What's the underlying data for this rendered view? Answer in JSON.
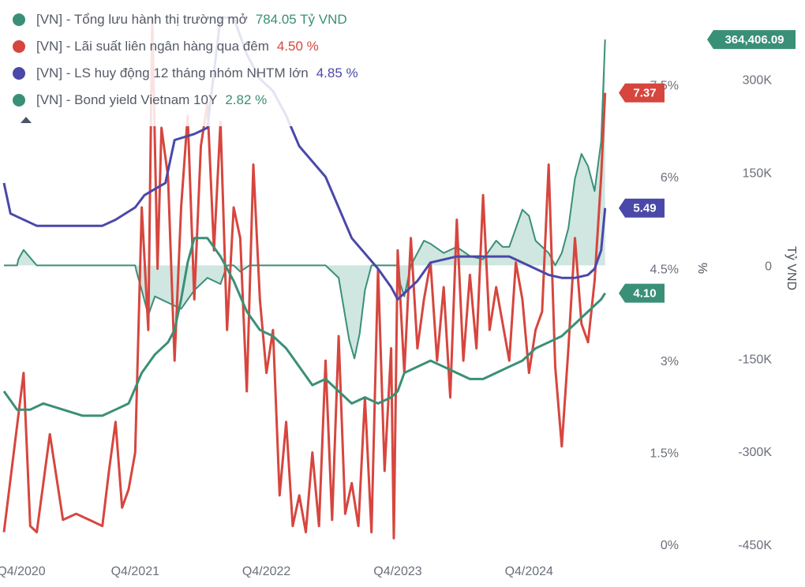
{
  "legend": {
    "items": [
      {
        "label": "[VN] - Tổng lưu hành thị trường mở",
        "value": "784.05 Tỷ VND",
        "color": "#3a8f77"
      },
      {
        "label": "[VN] - Lãi suất liên ngân hàng qua đêm",
        "value": "4.50 %",
        "color": "#d6463e"
      },
      {
        "label": "[VN] - LS huy động 12 tháng nhóm NHTM lớn",
        "value": "4.85 %",
        "color": "#4a48a8"
      },
      {
        "label": "[VN] - Bond yield Vietnam 10Y",
        "value": "2.82 %",
        "color": "#3a8f77"
      }
    ],
    "collapse_icon": "caret-up-icon"
  },
  "chart_data": {
    "type": "line",
    "x_ticks": [
      "Q4/2020",
      "Q4/2021",
      "Q4/2022",
      "Q4/2023",
      "Q4/2024"
    ],
    "x_tick_years": [
      2020.75,
      2021.75,
      2022.75,
      2023.75,
      2024.75
    ],
    "xlim": [
      2020.75,
      2025.5
    ],
    "y_left": {
      "title": "%",
      "ticks": [
        "0%",
        "1.5%",
        "3%",
        "4.5%",
        "6%",
        "7.5%"
      ],
      "tick_values": [
        0,
        1.5,
        3,
        4.5,
        6,
        7.5
      ],
      "ylim": [
        0,
        8.5
      ]
    },
    "y_right": {
      "title": "Tỷ VND",
      "ticks": [
        "-450K",
        "-300K",
        "-150K",
        "0",
        "150K",
        "300K"
      ],
      "tick_values": [
        -450000,
        -300000,
        -150000,
        0,
        150000,
        300000
      ],
      "ylim": [
        -450000,
        390000
      ]
    },
    "grid": false,
    "series": [
      {
        "name": "[VN] - Tổng lưu hành thị trường mở",
        "axis": "right",
        "color": "#3a8f77",
        "fill": "#bcdcd3",
        "x": [
          2020.75,
          2020.85,
          2020.86,
          2020.9,
          2021.0,
          2021.5,
          2021.75,
          2021.76,
          2021.8,
          2021.85,
          2021.9,
          2022.0,
          2022.1,
          2022.2,
          2022.3,
          2022.4,
          2022.45,
          2022.5,
          2022.55,
          2022.62,
          2022.64,
          2022.7,
          2022.75,
          2022.8,
          2022.9,
          2023.0,
          2023.1,
          2023.2,
          2023.3,
          2023.38,
          2023.42,
          2023.46,
          2023.5,
          2023.55,
          2023.65,
          2023.7,
          2023.75,
          2023.77,
          2023.8,
          2023.85,
          2023.9,
          2023.95,
          2024.0,
          2024.1,
          2024.2,
          2024.3,
          2024.4,
          2024.5,
          2024.55,
          2024.6,
          2024.65,
          2024.7,
          2024.75,
          2024.8,
          2024.85,
          2024.9,
          2024.95,
          2025.0,
          2025.05,
          2025.1,
          2025.15,
          2025.2,
          2025.25,
          2025.3,
          2025.33
        ],
        "y": [
          0,
          0,
          10000,
          25000,
          0,
          0,
          0,
          -10000,
          -40000,
          -80000,
          -50000,
          -60000,
          -70000,
          -40000,
          -20000,
          -30000,
          0,
          0,
          -10000,
          0,
          0,
          0,
          0,
          0,
          0,
          0,
          0,
          0,
          -20000,
          -120000,
          -150000,
          -110000,
          -40000,
          0,
          0,
          0,
          0,
          -30000,
          -50000,
          0,
          20000,
          40000,
          35000,
          20000,
          30000,
          15000,
          10000,
          40000,
          30000,
          30000,
          60000,
          90000,
          80000,
          40000,
          30000,
          20000,
          0,
          20000,
          60000,
          140000,
          180000,
          160000,
          120000,
          200000,
          364406.09
        ]
      },
      {
        "name": "[VN] - Lãi suất liên ngân hàng qua đêm",
        "axis": "left",
        "color": "#d6463e",
        "x": [
          2020.75,
          2020.9,
          2020.95,
          2021.0,
          2021.05,
          2021.1,
          2021.2,
          2021.3,
          2021.4,
          2021.5,
          2021.55,
          2021.6,
          2021.65,
          2021.7,
          2021.75,
          2021.8,
          2021.85,
          2021.88,
          2021.92,
          2021.95,
          2022.0,
          2022.05,
          2022.1,
          2022.15,
          2022.2,
          2022.25,
          2022.3,
          2022.35,
          2022.4,
          2022.45,
          2022.5,
          2022.55,
          2022.6,
          2022.65,
          2022.7,
          2022.75,
          2022.8,
          2022.85,
          2022.9,
          2022.95,
          2023.0,
          2023.05,
          2023.1,
          2023.15,
          2023.2,
          2023.25,
          2023.3,
          2023.35,
          2023.4,
          2023.45,
          2023.5,
          2023.55,
          2023.6,
          2023.65,
          2023.7,
          2023.72,
          2023.75,
          2023.8,
          2023.85,
          2023.9,
          2023.95,
          2024.0,
          2024.05,
          2024.1,
          2024.15,
          2024.2,
          2024.25,
          2024.3,
          2024.35,
          2024.4,
          2024.45,
          2024.5,
          2024.55,
          2024.6,
          2024.65,
          2024.7,
          2024.75,
          2024.8,
          2024.85,
          2024.9,
          2024.95,
          2025.0,
          2025.05,
          2025.1,
          2025.15,
          2025.2,
          2025.25,
          2025.3,
          2025.33
        ],
        "y": [
          0.2,
          2.8,
          0.3,
          0.2,
          1.0,
          1.8,
          0.4,
          0.5,
          0.4,
          0.3,
          1.2,
          2.0,
          0.6,
          0.9,
          1.5,
          5.5,
          3.5,
          8.6,
          4.5,
          6.8,
          6.0,
          3.0,
          5.5,
          7.0,
          4.0,
          6.5,
          7.2,
          4.8,
          6.9,
          3.5,
          5.5,
          5.0,
          2.5,
          6.2,
          4.0,
          2.8,
          3.5,
          0.8,
          2.0,
          0.3,
          0.8,
          0.2,
          1.5,
          0.3,
          3.0,
          0.4,
          3.4,
          0.5,
          1.0,
          0.3,
          2.4,
          0.2,
          4.5,
          1.2,
          3.2,
          0.1,
          4.8,
          2.8,
          5.0,
          3.2,
          4.0,
          4.6,
          3.0,
          4.2,
          2.4,
          5.3,
          3.0,
          4.4,
          3.2,
          5.7,
          3.5,
          4.2,
          3.6,
          3.0,
          4.6,
          4.0,
          2.8,
          3.5,
          3.8,
          6.2,
          2.9,
          1.6,
          3.2,
          5.0,
          3.6,
          3.3,
          4.3,
          6.0,
          7.37
        ]
      },
      {
        "name": "[VN] - LS huy động 12 tháng nhóm NHTM lớn",
        "axis": "left",
        "color": "#4a48a8",
        "x": [
          2020.75,
          2020.8,
          2021.0,
          2021.2,
          2021.5,
          2021.6,
          2021.75,
          2021.82,
          2021.9,
          2021.98,
          2022.05,
          2022.2,
          2022.3,
          2022.4,
          2022.5,
          2022.6,
          2022.7,
          2022.8,
          2022.9,
          2023.0,
          2023.2,
          2023.4,
          2023.6,
          2023.7,
          2023.75,
          2023.8,
          2023.9,
          2024.0,
          2024.2,
          2024.4,
          2024.6,
          2024.8,
          2024.9,
          2025.0,
          2025.1,
          2025.2,
          2025.25,
          2025.3,
          2025.33
        ],
        "y": [
          5.9,
          5.4,
          5.2,
          5.2,
          5.2,
          5.3,
          5.5,
          5.7,
          5.8,
          5.9,
          6.6,
          6.7,
          6.8,
          8.6,
          8.6,
          8.0,
          7.6,
          7.4,
          7.0,
          6.5,
          6.0,
          5.0,
          4.5,
          4.2,
          4.0,
          4.1,
          4.3,
          4.6,
          4.7,
          4.7,
          4.7,
          4.5,
          4.4,
          4.35,
          4.35,
          4.4,
          4.5,
          4.8,
          5.49
        ]
      },
      {
        "name": "[VN] - Bond yield Vietnam 10Y",
        "axis": "left",
        "color": "#3a8f77",
        "x": [
          2020.75,
          2020.85,
          2020.95,
          2021.05,
          2021.2,
          2021.35,
          2021.5,
          2021.6,
          2021.7,
          2021.8,
          2021.9,
          2022.0,
          2022.05,
          2022.1,
          2022.15,
          2022.2,
          2022.3,
          2022.4,
          2022.5,
          2022.6,
          2022.7,
          2022.8,
          2022.9,
          2023.0,
          2023.1,
          2023.2,
          2023.3,
          2023.4,
          2023.5,
          2023.6,
          2023.7,
          2023.75,
          2023.8,
          2023.9,
          2024.0,
          2024.1,
          2024.2,
          2024.3,
          2024.4,
          2024.5,
          2024.6,
          2024.7,
          2024.8,
          2024.9,
          2025.0,
          2025.1,
          2025.2,
          2025.3,
          2025.33
        ],
        "y": [
          2.5,
          2.2,
          2.2,
          2.3,
          2.2,
          2.1,
          2.1,
          2.2,
          2.3,
          2.8,
          3.1,
          3.3,
          3.5,
          4.0,
          4.6,
          5.0,
          5.0,
          4.7,
          4.3,
          3.8,
          3.5,
          3.4,
          3.2,
          2.9,
          2.6,
          2.7,
          2.5,
          2.3,
          2.4,
          2.3,
          2.4,
          2.5,
          2.8,
          2.9,
          3.0,
          2.9,
          2.8,
          2.7,
          2.7,
          2.8,
          2.9,
          3.0,
          3.2,
          3.3,
          3.4,
          3.6,
          3.8,
          4.0,
          4.1
        ]
      }
    ],
    "last_value_badges": [
      {
        "series": 0,
        "text": "364,406.09",
        "color": "#3a8f77"
      },
      {
        "series": 1,
        "text": "7.37",
        "color": "#d6463e"
      },
      {
        "series": 2,
        "text": "5.49",
        "color": "#4a48a8"
      },
      {
        "series": 3,
        "text": "4.10",
        "color": "#3a8f77"
      }
    ]
  }
}
